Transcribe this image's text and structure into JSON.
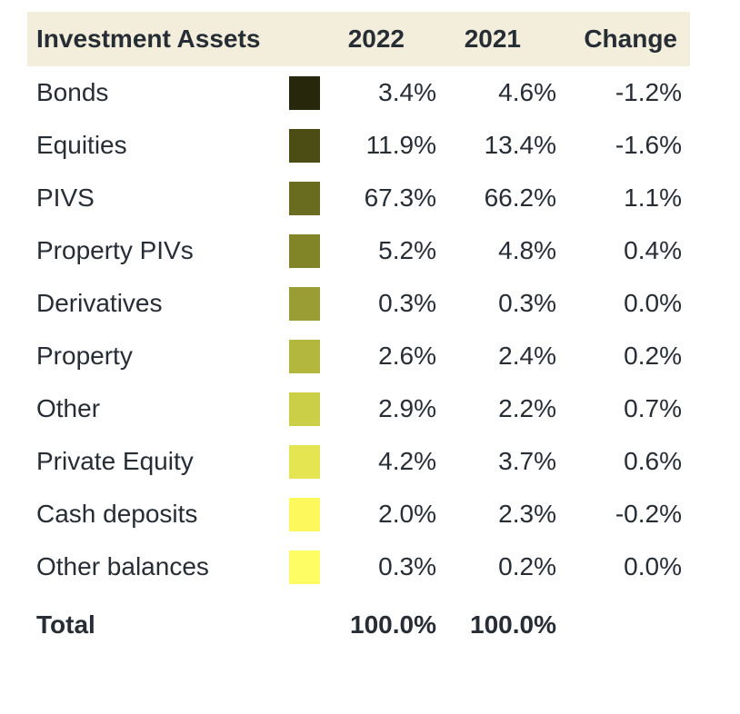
{
  "table": {
    "header": {
      "col_label": "Investment Assets",
      "col_2022": "2022",
      "col_2021": "2021",
      "col_change": "Change"
    },
    "rows": [
      {
        "label": "Bonds",
        "swatch": "#26270b",
        "y2022": "3.4%",
        "y2021": "4.6%",
        "change": "-1.2%"
      },
      {
        "label": "Equities",
        "swatch": "#4c4d14",
        "y2022": "11.9%",
        "y2021": "13.4%",
        "change": "-1.6%"
      },
      {
        "label": "PIVS",
        "swatch": "#696b1f",
        "y2022": "67.3%",
        "y2021": "66.2%",
        "change": "1.1%"
      },
      {
        "label": "Property PIVs",
        "swatch": "#818427",
        "y2022": "5.2%",
        "y2021": "4.8%",
        "change": "0.4%"
      },
      {
        "label": "Derivatives",
        "swatch": "#9a9d33",
        "y2022": "0.3%",
        "y2021": "0.3%",
        "change": "0.0%"
      },
      {
        "label": "Property",
        "swatch": "#b4b73e",
        "y2022": "2.6%",
        "y2021": "2.4%",
        "change": "0.2%"
      },
      {
        "label": "Other",
        "swatch": "#cbcf47",
        "y2022": "2.9%",
        "y2021": "2.2%",
        "change": "0.7%"
      },
      {
        "label": "Private Equity",
        "swatch": "#e4e551",
        "y2022": "4.2%",
        "y2021": "3.7%",
        "change": "0.6%"
      },
      {
        "label": "Cash deposits",
        "swatch": "#fdf85c",
        "y2022": "2.0%",
        "y2021": "2.3%",
        "change": "-0.2%"
      },
      {
        "label": "Other balances",
        "swatch": "#fefd64",
        "y2022": "0.3%",
        "y2021": "0.2%",
        "change": "0.0%"
      }
    ],
    "total": {
      "label": "Total",
      "y2022": "100.0%",
      "y2021": "100.0%",
      "change": ""
    }
  },
  "colors": {
    "header_background": "#f2eedb",
    "text": "#272d35",
    "page_background": "#ffffff"
  },
  "chart_data": {
    "type": "table",
    "title": "Investment Assets",
    "categories": [
      "Bonds",
      "Equities",
      "PIVS",
      "Property PIVs",
      "Derivatives",
      "Property",
      "Other",
      "Private Equity",
      "Cash deposits",
      "Other balances"
    ],
    "series": [
      {
        "name": "2022",
        "values": [
          3.4,
          11.9,
          67.3,
          5.2,
          0.3,
          2.6,
          2.9,
          4.2,
          2.0,
          0.3
        ]
      },
      {
        "name": "2021",
        "values": [
          4.6,
          13.4,
          66.2,
          4.8,
          0.3,
          2.4,
          2.2,
          3.7,
          2.3,
          0.2
        ]
      },
      {
        "name": "Change",
        "values": [
          -1.2,
          -1.6,
          1.1,
          0.4,
          0.0,
          0.2,
          0.7,
          0.6,
          -0.2,
          0.0
        ]
      }
    ],
    "totals": {
      "2022": 100.0,
      "2021": 100.0
    },
    "swatch_colors": [
      "#26270b",
      "#4c4d14",
      "#696b1f",
      "#818427",
      "#9a9d33",
      "#b4b73e",
      "#cbcf47",
      "#e4e551",
      "#fdf85c",
      "#fefd64"
    ],
    "units": "%"
  }
}
